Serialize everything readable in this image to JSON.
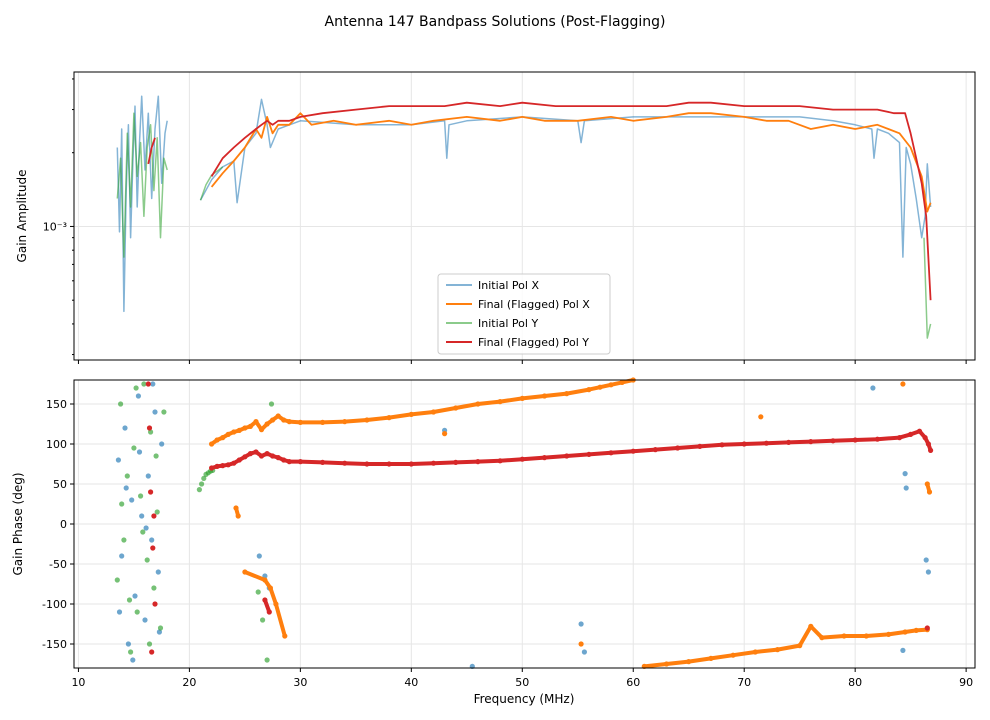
{
  "figure_title": "Antenna 147 Bandpass Solutions (Post-Flagging)",
  "colors": {
    "initial_x": "#1f77b4",
    "final_x": "#ff7f0e",
    "initial_y": "#2ca02c",
    "final_y": "#d62728",
    "grid": "#e6e6e6"
  },
  "chart_data": [
    {
      "type": "line",
      "title": "",
      "xlabel": "",
      "ylabel": "Gain Amplitude",
      "yscale": "log",
      "xlim": [
        9.6,
        90.8
      ],
      "ylim": [
        0.000285,
        0.00427
      ],
      "y_tick_labels": [
        "10⁻³"
      ],
      "legend": {
        "position": "lower-center",
        "entries": [
          "Initial Pol X",
          "Final (Flagged) Pol X",
          "Initial Pol Y",
          "Final (Flagged) Pol Y"
        ]
      },
      "series": [
        {
          "name": "Initial Pol X",
          "x": [
            13.5,
            13.7,
            13.9,
            14.1,
            14.3,
            14.5,
            14.7,
            14.9,
            15.1,
            15.3,
            15.5,
            15.7,
            16.0,
            16.3,
            16.6,
            16.9,
            17.2,
            17.5,
            17.8,
            18.0,
            null,
            21.0,
            22.0,
            23.0,
            24.0,
            24.3,
            25.0,
            26.0,
            26.5,
            27.0,
            27.3,
            28.0,
            30.0,
            35.0,
            40.0,
            43.0,
            43.2,
            43.4,
            45.0,
            50.0,
            55.0,
            55.3,
            55.6,
            60.0,
            65.0,
            70.0,
            75.0,
            78.0,
            80.0,
            81.5,
            81.7,
            82.0,
            83.0,
            84.0,
            84.3,
            84.6,
            85.0,
            85.5,
            86.0,
            86.3,
            86.5,
            86.8
          ],
          "y": [
            0.0021,
            0.00095,
            0.0025,
            0.00045,
            0.0014,
            0.0026,
            0.0009,
            0.0018,
            0.0031,
            0.0012,
            0.0022,
            0.0034,
            0.0017,
            0.0029,
            0.0013,
            0.0025,
            0.0034,
            0.0015,
            0.0024,
            0.0027,
            null,
            0.00128,
            0.00155,
            0.00175,
            0.00185,
            0.00125,
            0.0021,
            0.0024,
            0.0033,
            0.0026,
            0.0021,
            0.0025,
            0.0027,
            0.0026,
            0.0026,
            0.0027,
            0.0019,
            0.0026,
            0.0027,
            0.0028,
            0.0027,
            0.0022,
            0.0027,
            0.0028,
            0.0028,
            0.0028,
            0.0028,
            0.0027,
            0.0026,
            0.0025,
            0.0019,
            0.0025,
            0.0024,
            0.0022,
            0.00075,
            0.0021,
            0.0018,
            0.0013,
            0.0009,
            0.0011,
            0.0018,
            0.0012
          ]
        },
        {
          "name": "Final (Flagged) Pol X",
          "x": [
            22.0,
            23.0,
            24.0,
            25.0,
            26.0,
            26.5,
            27.0,
            27.5,
            28.0,
            29.0,
            30.0,
            31.0,
            33.0,
            35.0,
            38.0,
            40.0,
            42.0,
            45.0,
            48.0,
            50.0,
            52.0,
            55.0,
            58.0,
            60.0,
            63.0,
            65.0,
            67.0,
            70.0,
            72.0,
            74.0,
            76.0,
            78.0,
            80.0,
            82.0,
            84.0,
            85.0,
            86.0,
            86.5,
            86.8
          ],
          "y": [
            0.00145,
            0.00165,
            0.00185,
            0.0021,
            0.0025,
            0.0023,
            0.0028,
            0.0024,
            0.0026,
            0.0026,
            0.0029,
            0.0026,
            0.0027,
            0.0026,
            0.0027,
            0.0026,
            0.0027,
            0.0028,
            0.0027,
            0.0028,
            0.0027,
            0.0027,
            0.0028,
            0.0027,
            0.0028,
            0.0029,
            0.0029,
            0.0028,
            0.0027,
            0.0027,
            0.0025,
            0.0026,
            0.0025,
            0.0026,
            0.0024,
            0.0021,
            0.0016,
            0.00115,
            0.00125
          ]
        },
        {
          "name": "Initial Pol Y",
          "x": [
            13.5,
            13.8,
            14.1,
            14.4,
            14.7,
            15.0,
            15.3,
            15.6,
            15.9,
            16.2,
            16.5,
            16.8,
            17.1,
            17.4,
            17.7,
            18.0,
            null,
            21.0,
            21.5,
            22.0,
            22.5,
            23.0,
            null,
            86.2,
            86.5,
            86.8
          ],
          "y": [
            0.0013,
            0.0019,
            0.00075,
            0.0024,
            0.0012,
            0.0029,
            0.0016,
            0.0022,
            0.0011,
            0.0021,
            0.0026,
            0.0014,
            0.0023,
            0.0009,
            0.0019,
            0.0017,
            null,
            0.00128,
            0.00148,
            0.00162,
            0.00168,
            0.00175,
            null,
            0.0009,
            0.00035,
            0.0004
          ]
        },
        {
          "name": "Final (Flagged) Pol Y",
          "x": [
            16.3,
            16.6,
            16.9,
            null,
            22.0,
            23.0,
            24.0,
            25.0,
            26.0,
            26.5,
            27.0,
            27.5,
            28.0,
            29.0,
            30.0,
            32.0,
            35.0,
            38.0,
            40.0,
            43.0,
            45.0,
            48.0,
            50.0,
            53.0,
            55.0,
            58.0,
            60.0,
            63.0,
            65.0,
            67.0,
            70.0,
            72.0,
            75.0,
            78.0,
            80.0,
            82.0,
            83.5,
            84.5,
            85.0,
            85.5,
            86.0,
            86.4,
            86.8
          ],
          "y": [
            0.0018,
            0.0021,
            0.0023,
            null,
            0.0016,
            0.0019,
            0.0021,
            0.0023,
            0.0025,
            0.0026,
            0.0027,
            0.0026,
            0.0027,
            0.0027,
            0.0028,
            0.0029,
            0.003,
            0.0031,
            0.0031,
            0.0031,
            0.0032,
            0.0031,
            0.0032,
            0.0031,
            0.0031,
            0.0031,
            0.0031,
            0.0031,
            0.0032,
            0.0032,
            0.0031,
            0.0031,
            0.0031,
            0.003,
            0.003,
            0.003,
            0.0029,
            0.0029,
            0.0024,
            0.0019,
            0.0015,
            0.0011,
            0.0005
          ]
        }
      ]
    },
    {
      "type": "scatter",
      "title": "",
      "xlabel": "Frequency (MHz)",
      "ylabel": "Gain Phase (deg)",
      "xlim": [
        9.6,
        90.8
      ],
      "ylim": [
        -180,
        180
      ],
      "x_ticks": [
        10,
        20,
        30,
        40,
        50,
        60,
        70,
        80,
        90
      ],
      "y_ticks": [
        -150,
        -100,
        -50,
        0,
        50,
        100,
        150
      ],
      "series": [
        {
          "name": "Initial Pol X",
          "x": [
            13.6,
            13.9,
            14.2,
            14.5,
            14.8,
            15.1,
            15.4,
            15.7,
            16.0,
            16.3,
            16.6,
            16.9,
            17.2,
            17.5,
            13.7,
            14.3,
            14.9,
            15.5,
            16.1,
            16.7,
            17.3,
            26.3,
            26.8,
            27.2,
            43.0,
            45.5,
            55.3,
            55.6,
            84.3,
            84.5,
            84.6,
            86.4,
            86.6,
            81.6
          ],
          "y": [
            80,
            -40,
            120,
            -150,
            30,
            -90,
            160,
            10,
            -120,
            60,
            -20,
            140,
            -60,
            100,
            -110,
            45,
            -170,
            90,
            -5,
            175,
            -135,
            -40,
            -65,
            -80,
            117,
            -178,
            -125,
            -160,
            -158,
            63,
            45,
            -45,
            -60,
            170
          ]
        },
        {
          "name": "Final (Flagged) Pol X",
          "x": [
            22.0,
            22.5,
            23.0,
            23.5,
            24.0,
            24.5,
            25.0,
            25.5,
            26.0,
            26.5,
            27.0,
            27.5,
            28.0,
            28.5,
            29.0,
            30.0,
            32.0,
            34.0,
            36.0,
            38.0,
            40.0,
            42.0,
            44.0,
            46.0,
            48.0,
            50.0,
            52.0,
            54.0,
            56.0,
            57.0,
            58.0,
            59.0,
            60.0,
            61.0,
            63.0,
            65.0,
            67.0,
            69.0,
            71.0,
            73.0,
            75.0,
            76.0,
            77.0,
            79.0,
            81.0,
            83.0,
            84.5,
            85.5,
            86.5,
            24.2,
            24.4,
            25.0,
            26.8,
            27.3,
            27.8,
            28.6,
            43.0,
            55.3,
            71.5,
            84.3,
            86.5,
            86.7
          ],
          "y": [
            100,
            105,
            108,
            112,
            115,
            117,
            120,
            122,
            128,
            118,
            125,
            130,
            135,
            130,
            128,
            127,
            127,
            128,
            130,
            133,
            137,
            140,
            145,
            150,
            153,
            157,
            160,
            163,
            168,
            171,
            174,
            177,
            180,
            -178,
            -175,
            -172,
            -168,
            -164,
            -160,
            -157,
            -152,
            -128,
            -142,
            -140,
            -140,
            -138,
            -135,
            -133,
            -132,
            20,
            10,
            -60,
            -70,
            -80,
            -100,
            -140,
            113,
            -150,
            134,
            175,
            50,
            40
          ]
        },
        {
          "name": "Initial Pol Y",
          "x": [
            13.5,
            13.8,
            14.1,
            14.4,
            14.7,
            15.0,
            15.3,
            15.6,
            15.9,
            16.2,
            16.5,
            16.8,
            17.1,
            17.4,
            17.7,
            13.9,
            14.6,
            15.2,
            15.8,
            16.4,
            17.0,
            20.9,
            21.1,
            21.3,
            21.5,
            21.7,
            21.9,
            22.1,
            26.2,
            26.6,
            27.0,
            27.4
          ],
          "y": [
            -70,
            150,
            -20,
            60,
            -160,
            95,
            -110,
            35,
            175,
            -45,
            115,
            -80,
            15,
            -130,
            140,
            25,
            -95,
            170,
            -10,
            -150,
            85,
            43,
            50,
            57,
            62,
            64,
            66,
            67,
            -85,
            -120,
            -170,
            150
          ]
        },
        {
          "name": "Final (Flagged) Pol Y",
          "x": [
            16.3,
            16.5,
            16.7,
            16.9,
            16.4,
            16.6,
            16.8,
            22.0,
            22.5,
            23.0,
            23.5,
            24.0,
            24.5,
            25.0,
            25.5,
            26.0,
            26.5,
            27.0,
            27.5,
            28.0,
            28.5,
            29.0,
            30.0,
            32.0,
            34.0,
            36.0,
            38.0,
            40.0,
            42.0,
            44.0,
            46.0,
            48.0,
            50.0,
            52.0,
            54.0,
            56.0,
            58.0,
            60.0,
            62.0,
            64.0,
            66.0,
            68.0,
            70.0,
            72.0,
            74.0,
            76.0,
            78.0,
            80.0,
            82.0,
            84.0,
            85.0,
            85.8,
            86.3,
            86.6,
            86.8,
            26.8,
            27.2,
            86.5
          ],
          "y": [
            175,
            40,
            -30,
            -100,
            120,
            -160,
            10,
            70,
            72,
            73,
            74,
            76,
            80,
            84,
            88,
            90,
            85,
            88,
            85,
            83,
            80,
            78,
            78,
            77,
            76,
            75,
            75,
            75,
            76,
            77,
            78,
            79,
            81,
            83,
            85,
            87,
            89,
            91,
            93,
            95,
            97,
            99,
            100,
            101,
            102,
            103,
            104,
            105,
            106,
            108,
            112,
            116,
            108,
            100,
            92,
            -95,
            -110,
            -130
          ]
        }
      ]
    }
  ]
}
